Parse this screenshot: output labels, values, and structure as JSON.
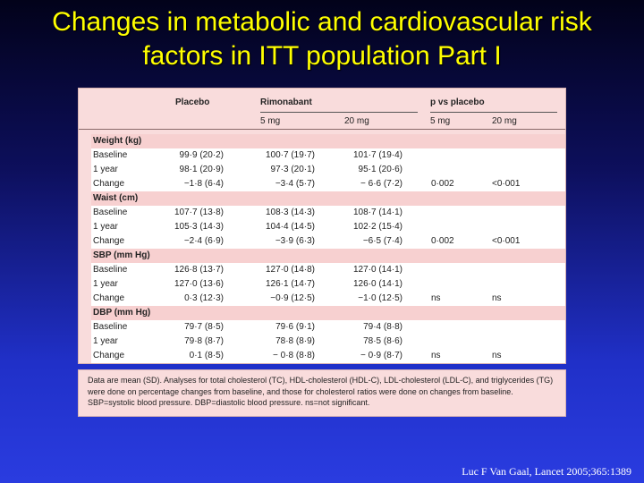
{
  "title_line1": "Changes in metabolic and cardiovascular risk",
  "title_line2": "factors in ITT population Part I",
  "table": {
    "headers": {
      "placebo": "Placebo",
      "rimonabant": "Rimonabant",
      "pvs": "p vs placebo",
      "rim_5": "5 mg",
      "rim_20": "20 mg",
      "p_5": "5 mg",
      "p_20": "20 mg"
    },
    "rows": [
      {
        "label": "Weight (kg)",
        "section": true
      },
      {
        "label": "Baseline",
        "placebo": "99·9 (20·2)",
        "r5": "100·7 (19·7)",
        "r20": "101·7 (19·4)",
        "p5": "",
        "p20": ""
      },
      {
        "label": "1 year",
        "placebo": "98·1 (20·9)",
        "r5": "97·3 (20·1)",
        "r20": "95·1 (20·6)",
        "p5": "",
        "p20": ""
      },
      {
        "label": "Change",
        "placebo": "−1·8 (6·4)",
        "r5": "−3·4 (5·7)",
        "r20": "− 6·6 (7·2)",
        "p5": "0·002",
        "p20": "<0·001"
      },
      {
        "label": "Waist (cm)",
        "section": true
      },
      {
        "label": "Baseline",
        "placebo": "107·7 (13·8)",
        "r5": "108·3 (14·3)",
        "r20": "108·7 (14·1)",
        "p5": "",
        "p20": ""
      },
      {
        "label": "1 year",
        "placebo": "105·3 (14·3)",
        "r5": "104·4 (14·5)",
        "r20": "102·2 (15·4)",
        "p5": "",
        "p20": ""
      },
      {
        "label": "Change",
        "placebo": "−2·4 (6·9)",
        "r5": "−3·9 (6·3)",
        "r20": "−6·5 (7·4)",
        "p5": "0·002",
        "p20": "<0·001"
      },
      {
        "label": "SBP (mm Hg)",
        "section": true
      },
      {
        "label": "Baseline",
        "placebo": "126·8 (13·7)",
        "r5": "127·0 (14·8)",
        "r20": "127·0 (14·1)",
        "p5": "",
        "p20": ""
      },
      {
        "label": "1 year",
        "placebo": "127·0 (13·6)",
        "r5": "126·1 (14·7)",
        "r20": "126·0 (14·1)",
        "p5": "",
        "p20": ""
      },
      {
        "label": "Change",
        "placebo": "0·3 (12·3)",
        "r5": "−0·9 (12·5)",
        "r20": "−1·0 (12·5)",
        "p5": "ns",
        "p20": "ns"
      },
      {
        "label": "DBP (mm Hg)",
        "section": true
      },
      {
        "label": "Baseline",
        "placebo": "79·7 (8·5)",
        "r5": "79·6 (9·1)",
        "r20": "79·4 (8·8)",
        "p5": "",
        "p20": ""
      },
      {
        "label": "1 year",
        "placebo": "79·8 (8·7)",
        "r5": "78·8 (8·9)",
        "r20": "78·5 (8·6)",
        "p5": "",
        "p20": ""
      },
      {
        "label": "Change",
        "placebo": "0·1 (8·5)",
        "r5": "− 0·8 (8·8)",
        "r20": "− 0·9 (8·7)",
        "p5": "ns",
        "p20": "ns"
      }
    ]
  },
  "footnote": {
    "line1": "Data are mean (SD). Analyses for total cholesterol (TC), HDL-cholesterol (HDL-C), LDL-cholesterol (LDL-C), and triglycerides (TG)",
    "line2": "were done on percentage changes from baseline, and those for cholesterol ratios were done on changes from baseline.",
    "line3": "SBP=systolic blood pressure. DBP=diastolic blood pressure. ns=not significant."
  },
  "citation": "Luc F Van Gaal, Lancet 2005;365:1389",
  "colors": {
    "title": "#ffff00",
    "table_bg": "#f9dcdc",
    "row_white": "#ffffff"
  }
}
